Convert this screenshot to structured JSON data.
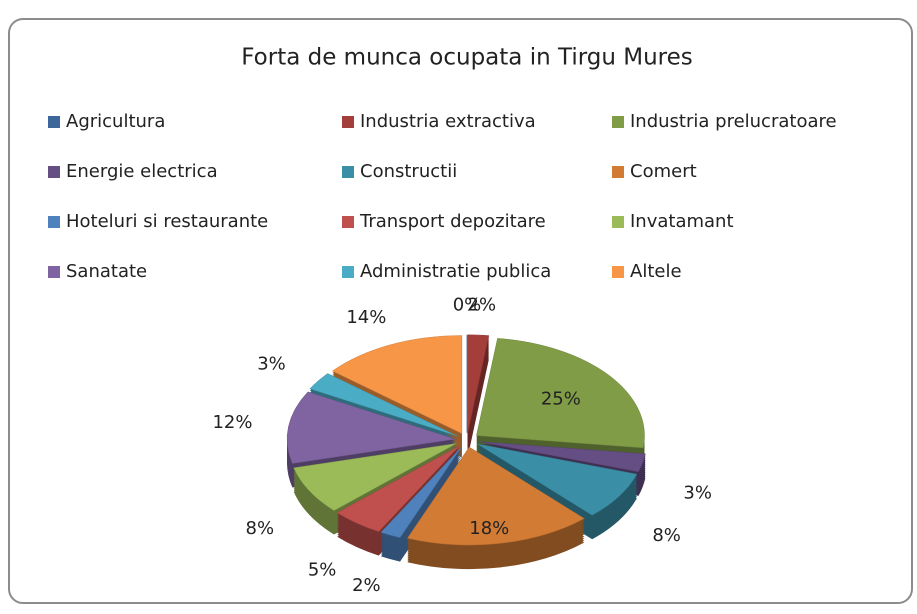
{
  "chart_data": {
    "type": "pie",
    "title": "Forta de munca ocupata in Tirgu Mures",
    "categories": [
      "Agricultura",
      "Industria extractiva",
      "Industria prelucratoare",
      "Energie electrica",
      "Constructii",
      "Comert",
      "Hoteluri si restaurante",
      "Transport depozitare",
      "Invatamant",
      "Sanatate",
      "Administratie publica",
      "Altele"
    ],
    "values": [
      0,
      2,
      25,
      3,
      8,
      18,
      2,
      5,
      8,
      12,
      3,
      14
    ],
    "value_labels": [
      "0%",
      "2%",
      "25%",
      "3%",
      "8%",
      "18%",
      "2%",
      "5%",
      "8%",
      "12%",
      "3%",
      "14%"
    ],
    "colors": [
      "#3d679b",
      "#a33e3b",
      "#809c47",
      "#654e83",
      "#3a8ea6",
      "#d27b35",
      "#4f81bd",
      "#c0504d",
      "#9bbb59",
      "#8064a2",
      "#4bacc6",
      "#f79646"
    ],
    "legend": "top"
  }
}
